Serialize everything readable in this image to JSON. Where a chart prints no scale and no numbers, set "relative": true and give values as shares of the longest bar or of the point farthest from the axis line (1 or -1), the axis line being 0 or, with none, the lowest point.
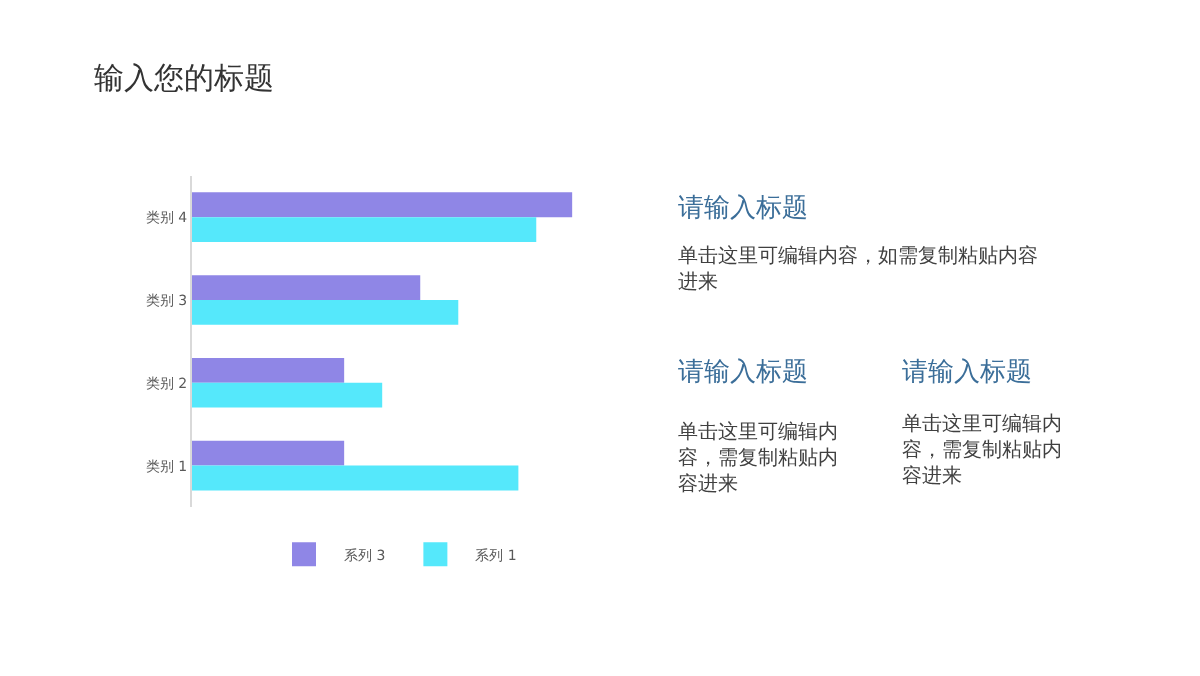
{
  "chart_data": {
    "type": "bar",
    "orientation": "horizontal",
    "relative": true,
    "title": "输入您的标题",
    "categories": [
      "类别 4",
      "类别 3",
      "类别 2",
      "类别 1"
    ],
    "series": [
      {
        "name": "系列 3",
        "color": "#8f86e6",
        "values": [
          1,
          0.6,
          0.4,
          0.4
        ]
      },
      {
        "name": "系列 1",
        "color": "#55e8fb",
        "values": [
          0.905,
          0.7,
          0.5,
          0.858
        ]
      }
    ],
    "legend": "bottom",
    "annotations": [
      "请输入标题",
      "单击这里可编辑内容，如需复制粘贴内容进来",
      "请输入标题",
      "单击这里可编辑内容，需复制粘贴内容进来",
      "请输入标题",
      "单击这里可编辑内容，需复制粘贴内容进来"
    ]
  }
}
